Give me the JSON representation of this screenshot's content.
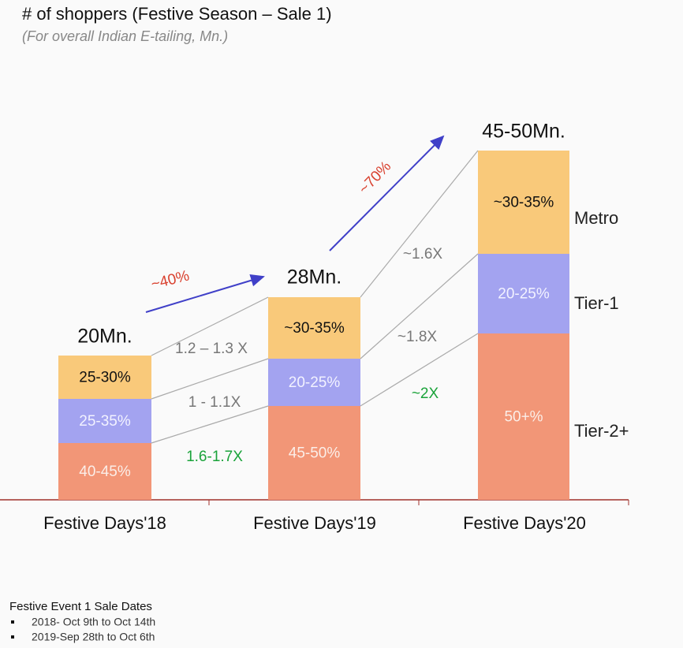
{
  "header": {
    "title": "# of shoppers (Festive Season – Sale 1)",
    "subtitle": "(For overall Indian E-tailing, Mn.)"
  },
  "columns": [
    {
      "label": "Festive Days'18",
      "total": "20Mn.",
      "segments": [
        "40-45%",
        "25-35%",
        "25-30%"
      ]
    },
    {
      "label": "Festive Days'19",
      "total": "28Mn.",
      "segments": [
        "45-50%",
        "20-25%",
        "~30-35%"
      ]
    },
    {
      "label": "Festive Days'20",
      "total": "45-50Mn.",
      "segments": [
        "50+%",
        "20-25%",
        "~30-35%"
      ]
    }
  ],
  "segment_names": [
    "Tier-2+",
    "Tier-1",
    "Metro"
  ],
  "multipliers": [
    [
      "1.6-1.7X",
      "1 - 1.1X",
      "1.2 – 1.3 X"
    ],
    [
      "~2X",
      "~1.8X",
      "~1.6X"
    ]
  ],
  "growth": [
    "~40%",
    "~70%"
  ],
  "footnote": {
    "title": "Festive Event 1 Sale Dates",
    "items": [
      "2018- Oct 9th to Oct 14th",
      "2019-Sep 28th to Oct 6th"
    ]
  }
}
